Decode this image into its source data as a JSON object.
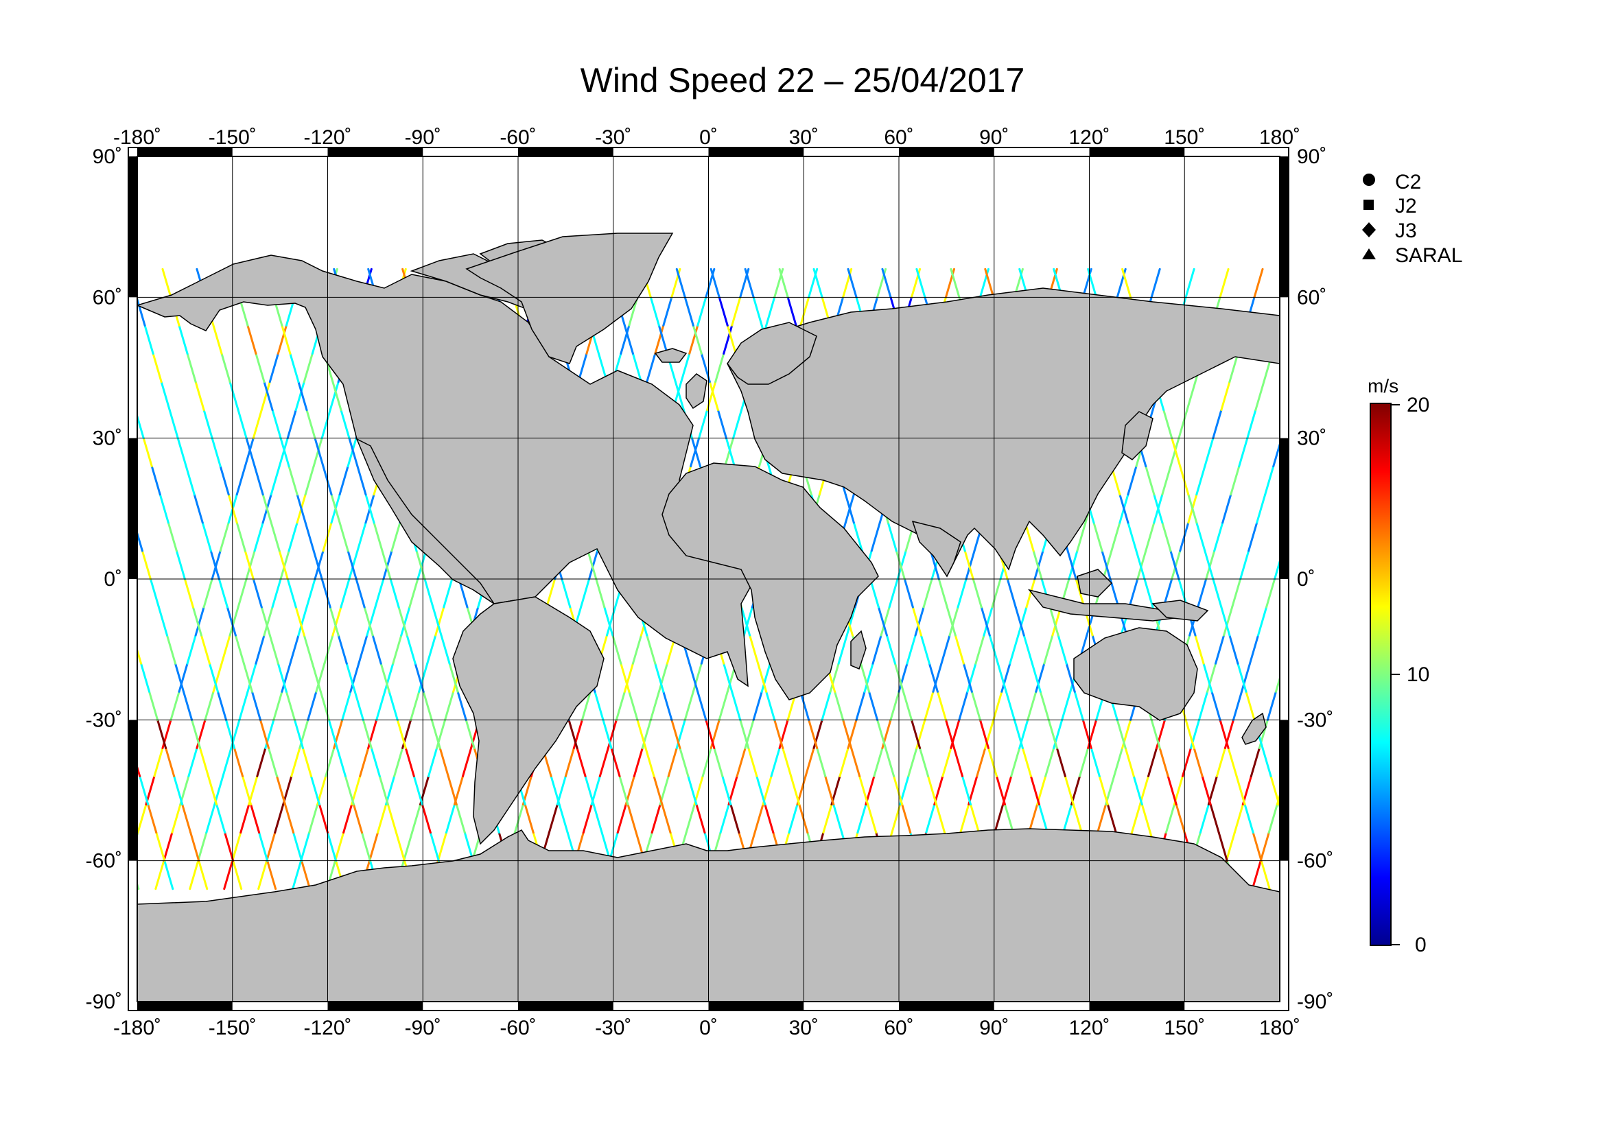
{
  "title": "Wind Speed 22 – 25/04/2017",
  "map": {
    "lon_ticks": [
      "-180˚",
      "-150˚",
      "-120˚",
      "-90˚",
      "-60˚",
      "-30˚",
      "0˚",
      "30˚",
      "60˚",
      "90˚",
      "120˚",
      "150˚",
      "180˚"
    ],
    "lat_ticks": [
      "90˚",
      "60˚",
      "30˚",
      "0˚",
      "-30˚",
      "-60˚",
      "-90˚"
    ],
    "lon_range": [
      -180,
      180
    ],
    "lat_range": [
      -90,
      90
    ],
    "land_color": "#bdbdbd",
    "track_colormap": "jet"
  },
  "legend": {
    "items": [
      {
        "label": "C2",
        "marker": "circle"
      },
      {
        "label": "J2",
        "marker": "square"
      },
      {
        "label": "J3",
        "marker": "diamond"
      },
      {
        "label": "SARAL",
        "marker": "triangle"
      }
    ]
  },
  "colorbar": {
    "unit": "m/s",
    "min_label": "0",
    "mid_label": "10",
    "max_label": "20",
    "range": [
      0,
      20
    ],
    "colors": [
      "#00008f",
      "#0000ff",
      "#0080ff",
      "#00ffff",
      "#80ff80",
      "#ffff00",
      "#ff8000",
      "#ff0000",
      "#800000"
    ]
  }
}
